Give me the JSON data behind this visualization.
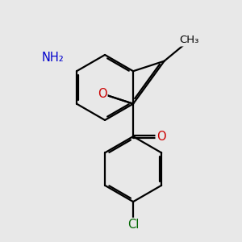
{
  "background_color": "#e8e8e8",
  "bond_color": "#000000",
  "bond_width": 1.6,
  "atom_colors": {
    "O": "#cc0000",
    "N": "#0000cc",
    "Cl": "#006600",
    "C": "#000000"
  },
  "font_size_atom": 10.5,
  "font_size_methyl": 9.5,
  "NH2_label": "NH₂",
  "CH3_label": "CH₃"
}
